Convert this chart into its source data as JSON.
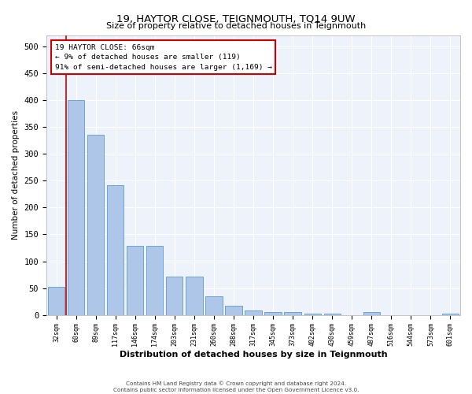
{
  "title": "19, HAYTOR CLOSE, TEIGNMOUTH, TQ14 9UW",
  "subtitle": "Size of property relative to detached houses in Teignmouth",
  "xlabel": "Distribution of detached houses by size in Teignmouth",
  "ylabel": "Number of detached properties",
  "bar_color": "#aec6e8",
  "bar_edge_color": "#5b9bd5",
  "background_color": "#eef2fa",
  "grid_color": "#ffffff",
  "annotation_box_color": "#cc0000",
  "property_line_color": "#cc0000",
  "property_bin_index": 1,
  "annotation_title": "19 HAYTOR CLOSE: 66sqm",
  "annotation_line1": "← 9% of detached houses are smaller (119)",
  "annotation_line2": "91% of semi-detached houses are larger (1,169) →",
  "categories": [
    "32sqm",
    "60sqm",
    "89sqm",
    "117sqm",
    "146sqm",
    "174sqm",
    "203sqm",
    "231sqm",
    "260sqm",
    "288sqm",
    "317sqm",
    "345sqm",
    "373sqm",
    "402sqm",
    "430sqm",
    "459sqm",
    "487sqm",
    "516sqm",
    "544sqm",
    "573sqm",
    "601sqm"
  ],
  "values": [
    52,
    400,
    336,
    241,
    129,
    129,
    71,
    71,
    35,
    17,
    8,
    5,
    5,
    2,
    2,
    0,
    5,
    0,
    0,
    0,
    2
  ],
  "ylim": [
    0,
    520
  ],
  "yticks": [
    0,
    50,
    100,
    150,
    200,
    250,
    300,
    350,
    400,
    450,
    500
  ],
  "footer_line1": "Contains HM Land Registry data © Crown copyright and database right 2024.",
  "footer_line2": "Contains public sector information licensed under the Open Government Licence v3.0."
}
